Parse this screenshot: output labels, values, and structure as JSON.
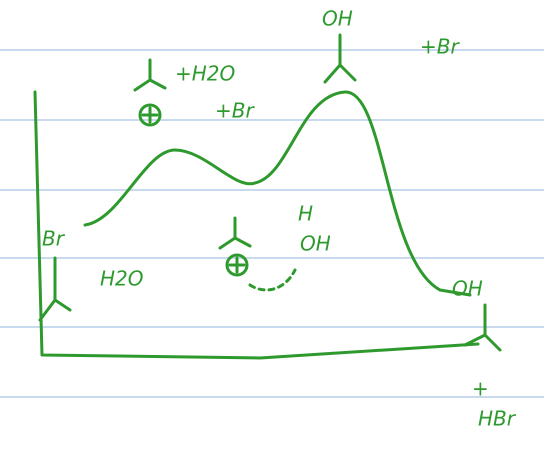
{
  "labels": [
    "+H2O",
    "+Br",
    "OH",
    "+Br",
    "Br",
    "H2O",
    "H",
    "OH",
    "OH",
    "+",
    "HBr"
  ]
}
